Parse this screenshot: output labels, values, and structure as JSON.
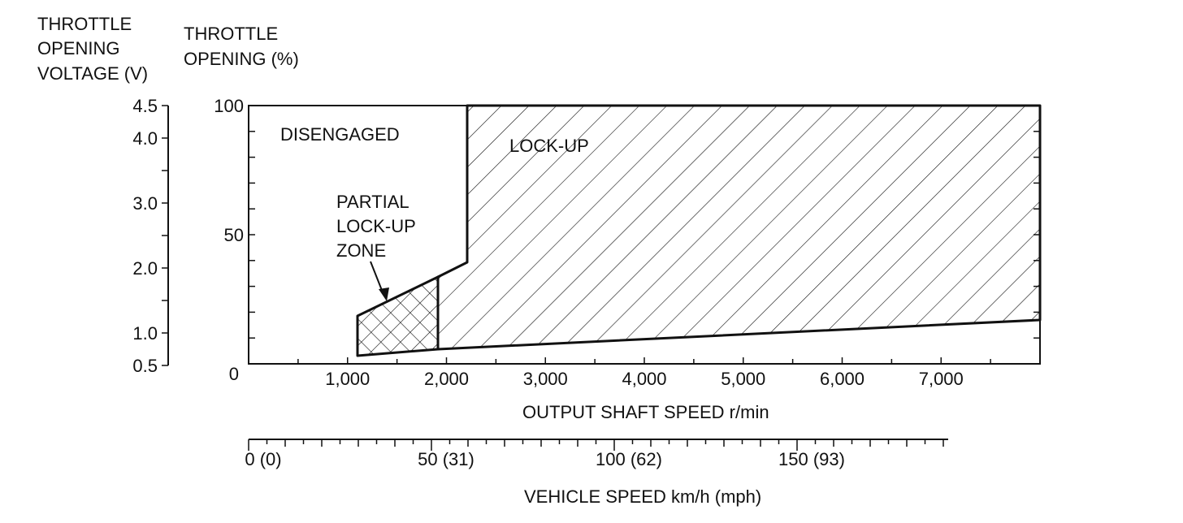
{
  "chart_data": {
    "type": "area",
    "y_axis_left": {
      "label_lines": [
        "THROTTLE",
        "OPENING",
        "VOLTAGE (V)"
      ],
      "ticks": [
        "4.5",
        "4.0",
        "3.0",
        "2.0",
        "1.0",
        "0.5"
      ],
      "tick_values": [
        4.5,
        4.0,
        3.0,
        2.0,
        1.0,
        0.5
      ],
      "range": [
        0.5,
        4.5
      ]
    },
    "y_axis_right": {
      "label_lines": [
        "THROTTLE",
        "OPENING (%)"
      ],
      "ticks": [
        "100",
        "50",
        "0"
      ],
      "tick_values": [
        100,
        50,
        0
      ],
      "range": [
        0,
        100
      ]
    },
    "x_axis": {
      "label": "OUTPUT SHAFT SPEED r/min",
      "ticks": [
        "1,000",
        "2,000",
        "3,000",
        "4,000",
        "5,000",
        "6,000",
        "7,000"
      ],
      "tick_values": [
        1000,
        2000,
        3000,
        4000,
        5000,
        6000,
        7000
      ],
      "range": [
        0,
        8000
      ]
    },
    "x_axis_secondary": {
      "label": "VEHICLE SPEED km/h (mph)",
      "ticks": [
        "0 (0)",
        "50 (31)",
        "100 (62)",
        "150 (93)"
      ],
      "tick_values": [
        0,
        50,
        100,
        150
      ],
      "range": [
        0,
        200
      ]
    },
    "regions": [
      {
        "name": "DISENGAGED",
        "fill": "none",
        "label_lines": [
          "DISENGAGED"
        ]
      },
      {
        "name": "LOCK-UP",
        "fill": "hatch",
        "label_lines": [
          "LOCK-UP"
        ],
        "boundary": [
          {
            "x": 1950,
            "y": 34
          },
          {
            "x": 2200,
            "y": 40
          },
          {
            "x": 2220,
            "y": 100
          },
          {
            "x": 8000,
            "y": 100
          },
          {
            "x": 8000,
            "y": 18
          },
          {
            "x": 1950,
            "y": 6
          }
        ]
      },
      {
        "name": "PARTIAL LOCK-UP ZONE",
        "fill": "crosshatch",
        "label_lines": [
          "PARTIAL",
          "LOCK-UP",
          "ZONE"
        ],
        "boundary": [
          {
            "x": 1100,
            "y": 22
          },
          {
            "x": 1950,
            "y": 36
          },
          {
            "x": 1950,
            "y": 6
          },
          {
            "x": 1100,
            "y": 4.5
          }
        ]
      }
    ],
    "colors": {
      "ink": "#111111",
      "background": "#ffffff"
    }
  }
}
